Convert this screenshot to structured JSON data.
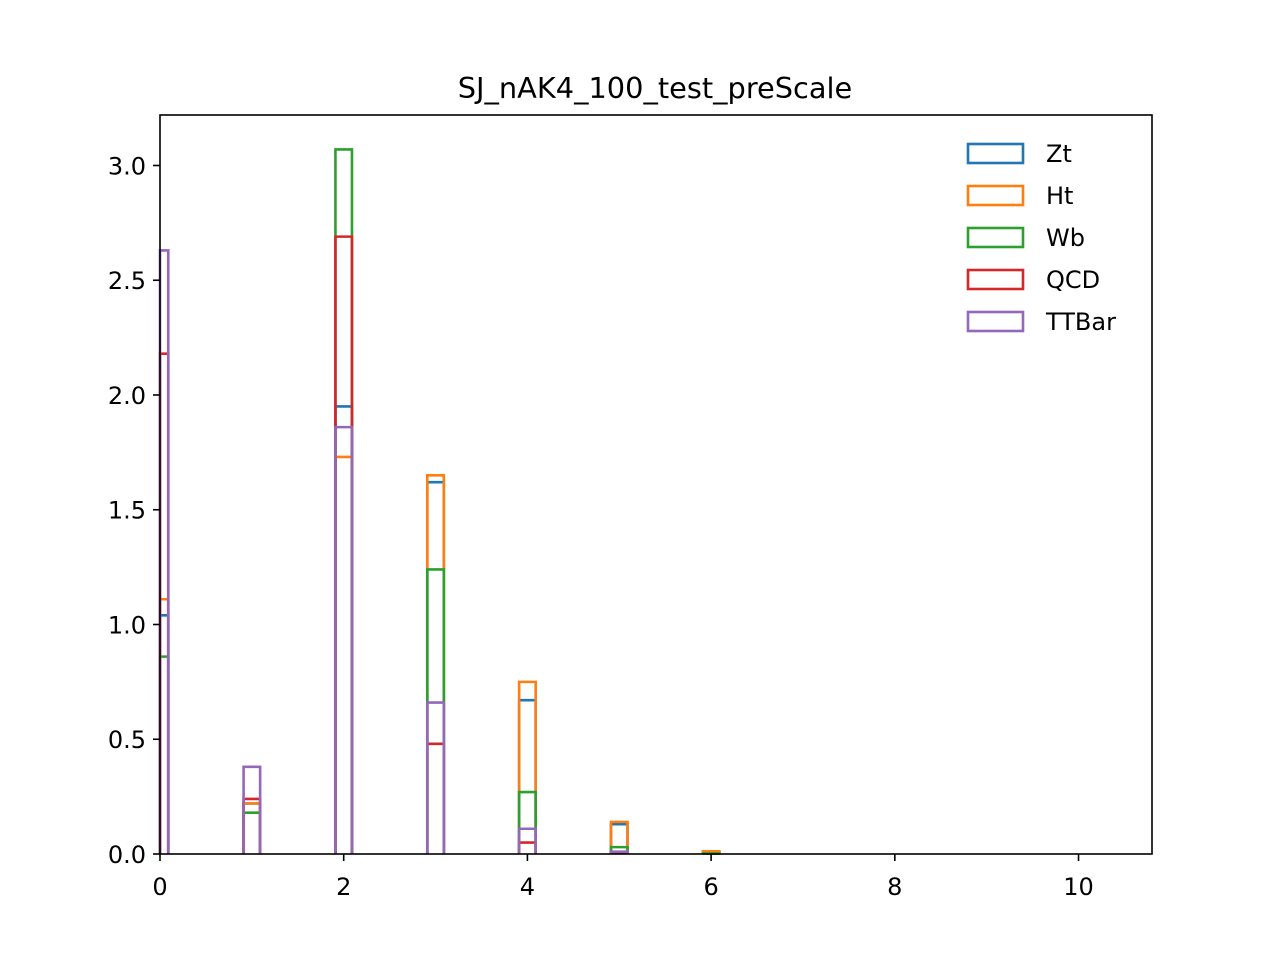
{
  "chart_data": {
    "type": "histogram-step",
    "title": "SJ_nAK4_100_test_preScale",
    "xlabel": "",
    "ylabel": "",
    "xlim": [
      0,
      10.8
    ],
    "ylim": [
      0,
      3.22
    ],
    "xticks": [
      0,
      2,
      4,
      6,
      8,
      10
    ],
    "xtick_labels": [
      "0",
      "2",
      "4",
      "6",
      "8",
      "10"
    ],
    "yticks": [
      0,
      0.5,
      1.0,
      1.5,
      2.0,
      2.5,
      3.0
    ],
    "ytick_labels": [
      "0.0",
      "0.5",
      "1.0",
      "1.5",
      "2.0",
      "2.5",
      "3.0"
    ],
    "bin_width": 0.18,
    "bin_centers": [
      0,
      1,
      2,
      3,
      4,
      5,
      6
    ],
    "grid": false,
    "legend_position": "top-right",
    "series": [
      {
        "name": "Zt",
        "color": "#1f77b4",
        "values": [
          1.04,
          0.22,
          1.95,
          1.62,
          0.67,
          0.13,
          0.005
        ]
      },
      {
        "name": "Ht",
        "color": "#ff7f0e",
        "values": [
          1.11,
          0.22,
          1.73,
          1.65,
          0.75,
          0.14,
          0.012
        ]
      },
      {
        "name": "Wb",
        "color": "#2ca02c",
        "values": [
          0.86,
          0.18,
          3.07,
          1.24,
          0.27,
          0.03,
          0.002
        ]
      },
      {
        "name": "QCD",
        "color": "#d62728",
        "values": [
          2.18,
          0.24,
          2.69,
          0.48,
          0.05,
          0.005,
          0.0
        ]
      },
      {
        "name": "TTBar",
        "color": "#9467bd",
        "values": [
          2.63,
          0.38,
          1.86,
          0.66,
          0.11,
          0.01,
          0.0
        ]
      }
    ]
  }
}
